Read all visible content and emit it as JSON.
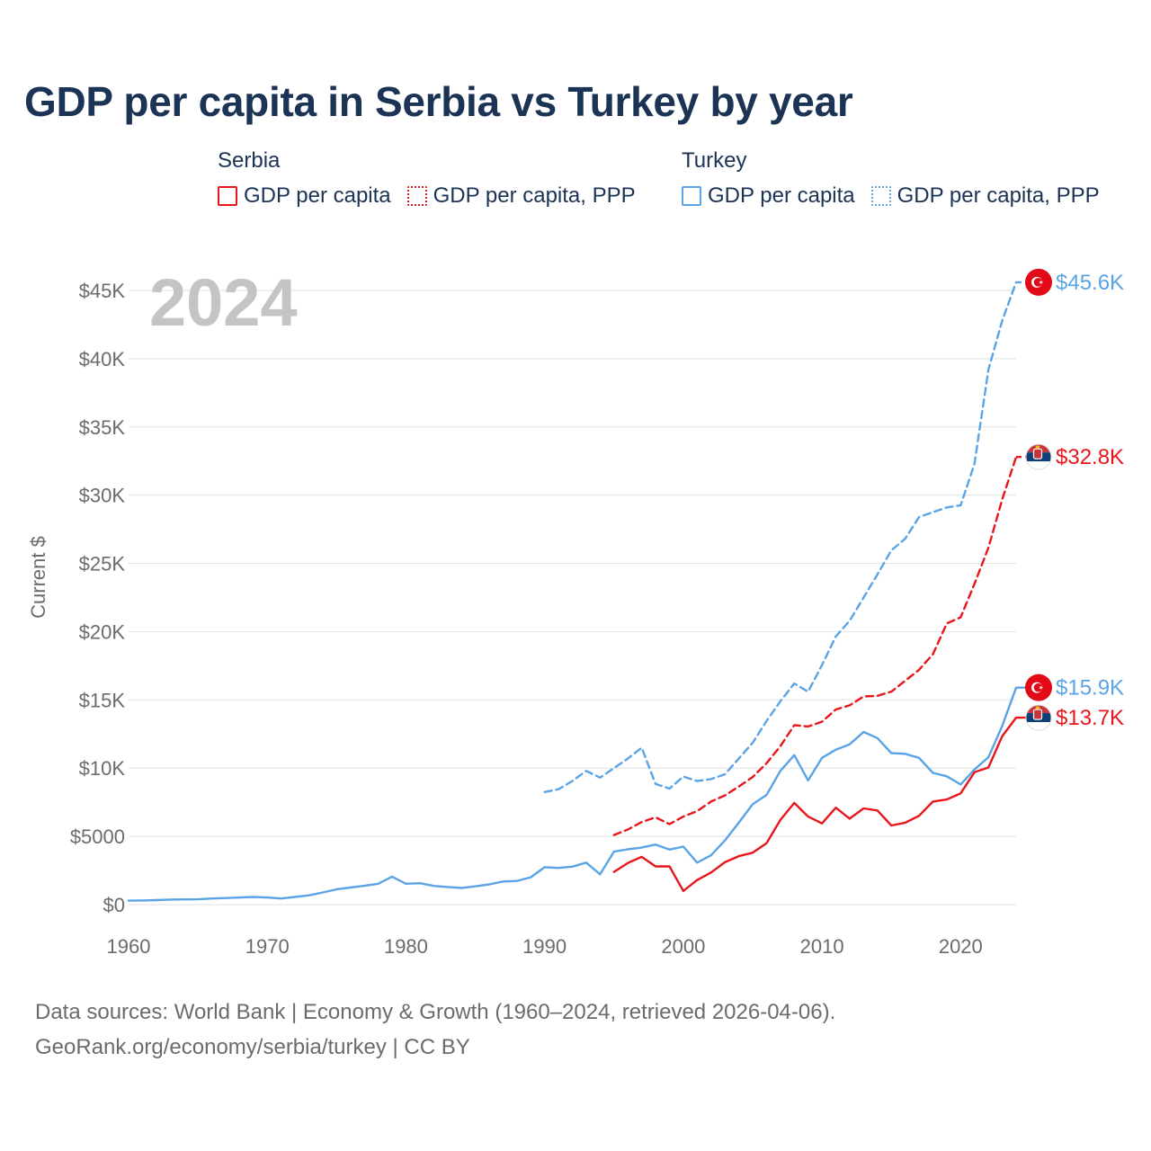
{
  "colors": {
    "serbia": "#e8161b",
    "turkey": "#5aa4e6",
    "title": "#1b3354",
    "muted": "#6b6b6b",
    "year": "#c4c4c4",
    "grid": "#e6e6e6"
  },
  "title": "GDP per capita in Serbia vs Turkey by year",
  "legend": {
    "serbia": {
      "heading": "Serbia",
      "items": [
        {
          "label": "GDP per capita",
          "style": "solid"
        },
        {
          "label": "GDP per capita, PPP",
          "style": "dotted"
        }
      ]
    },
    "turkey": {
      "heading": "Turkey",
      "items": [
        {
          "label": "GDP per capita",
          "style": "solid"
        },
        {
          "label": "GDP per capita, PPP",
          "style": "dotted"
        }
      ]
    }
  },
  "footer": {
    "line1": "Data sources: World Bank | Economy & Growth (1960–2024, retrieved 2026-04-06).",
    "line2": "GeoRank.org/economy/serbia/turkey | CC BY"
  },
  "chart_data": {
    "type": "line",
    "year_label": "2024",
    "ylabel": "Current $",
    "xlim": [
      1960,
      2024
    ],
    "ylim": [
      0,
      45000
    ],
    "xticks": [
      1960,
      1970,
      1980,
      1990,
      2000,
      2010,
      2020
    ],
    "xtick_labels": [
      "1960",
      "1970",
      "1980",
      "1990",
      "2000",
      "2010",
      "2020"
    ],
    "yticks": [
      0,
      5000,
      10000,
      15000,
      20000,
      25000,
      30000,
      35000,
      40000,
      45000
    ],
    "ytick_labels": [
      "$0",
      "$5000",
      "$10K",
      "$15K",
      "$20K",
      "$25K",
      "$30K",
      "$35K",
      "$40K",
      "$45K"
    ],
    "grid": true,
    "series": [
      {
        "key": "turkey_ppp",
        "country": "Turkey",
        "name": "GDP per capita, PPP",
        "color": "#5aa4e6",
        "dash": "dashed",
        "end_label": "$45.6K",
        "flag": "turkey-flag-icon",
        "points": [
          [
            1990,
            8250
          ],
          [
            1991,
            8450
          ],
          [
            1992,
            9050
          ],
          [
            1993,
            9800
          ],
          [
            1994,
            9300
          ],
          [
            1995,
            10000
          ],
          [
            1996,
            10700
          ],
          [
            1997,
            11500
          ],
          [
            1998,
            8850
          ],
          [
            1999,
            8500
          ],
          [
            2000,
            9380
          ],
          [
            2001,
            9050
          ],
          [
            2002,
            9200
          ],
          [
            2003,
            9550
          ],
          [
            2004,
            10700
          ],
          [
            2005,
            11850
          ],
          [
            2006,
            13450
          ],
          [
            2007,
            14900
          ],
          [
            2008,
            16200
          ],
          [
            2009,
            15600
          ],
          [
            2010,
            17550
          ],
          [
            2011,
            19650
          ],
          [
            2012,
            20800
          ],
          [
            2013,
            22500
          ],
          [
            2014,
            24200
          ],
          [
            2015,
            25950
          ],
          [
            2016,
            26800
          ],
          [
            2017,
            28400
          ],
          [
            2018,
            28750
          ],
          [
            2019,
            29100
          ],
          [
            2020,
            29250
          ],
          [
            2021,
            32300
          ],
          [
            2022,
            39200
          ],
          [
            2023,
            42800
          ],
          [
            2024,
            45600
          ]
        ]
      },
      {
        "key": "serbia_ppp",
        "country": "Serbia",
        "name": "GDP per capita, PPP",
        "color": "#e8161b",
        "dash": "dashed",
        "end_label": "$32.8K",
        "flag": "serbia-flag-icon",
        "points": [
          [
            1995,
            5100
          ],
          [
            1996,
            5500
          ],
          [
            1997,
            6050
          ],
          [
            1998,
            6400
          ],
          [
            1999,
            5900
          ],
          [
            2000,
            6450
          ],
          [
            2001,
            6850
          ],
          [
            2002,
            7550
          ],
          [
            2003,
            8000
          ],
          [
            2004,
            8650
          ],
          [
            2005,
            9350
          ],
          [
            2006,
            10350
          ],
          [
            2007,
            11600
          ],
          [
            2008,
            13150
          ],
          [
            2009,
            13050
          ],
          [
            2010,
            13400
          ],
          [
            2011,
            14300
          ],
          [
            2012,
            14600
          ],
          [
            2013,
            15250
          ],
          [
            2014,
            15300
          ],
          [
            2015,
            15600
          ],
          [
            2016,
            16400
          ],
          [
            2017,
            17200
          ],
          [
            2018,
            18350
          ],
          [
            2019,
            20600
          ],
          [
            2020,
            21050
          ],
          [
            2021,
            23500
          ],
          [
            2022,
            26150
          ],
          [
            2023,
            29700
          ],
          [
            2024,
            32800
          ]
        ]
      },
      {
        "key": "turkey_gdp",
        "country": "Turkey",
        "name": "GDP per capita",
        "color": "#5aa4e6",
        "dash": "solid",
        "end_label": "$15.9K",
        "flag": "turkey-flag-icon",
        "points": [
          [
            1960,
            290
          ],
          [
            1961,
            300
          ],
          [
            1962,
            330
          ],
          [
            1963,
            370
          ],
          [
            1964,
            380
          ],
          [
            1965,
            390
          ],
          [
            1966,
            450
          ],
          [
            1967,
            480
          ],
          [
            1968,
            520
          ],
          [
            1969,
            560
          ],
          [
            1970,
            520
          ],
          [
            1971,
            450
          ],
          [
            1972,
            560
          ],
          [
            1973,
            680
          ],
          [
            1974,
            890
          ],
          [
            1975,
            1120
          ],
          [
            1976,
            1250
          ],
          [
            1977,
            1380
          ],
          [
            1978,
            1530
          ],
          [
            1979,
            2050
          ],
          [
            1980,
            1530
          ],
          [
            1981,
            1570
          ],
          [
            1982,
            1370
          ],
          [
            1983,
            1290
          ],
          [
            1984,
            1220
          ],
          [
            1985,
            1340
          ],
          [
            1986,
            1480
          ],
          [
            1987,
            1690
          ],
          [
            1988,
            1730
          ],
          [
            1989,
            2000
          ],
          [
            1990,
            2740
          ],
          [
            1991,
            2690
          ],
          [
            1992,
            2780
          ],
          [
            1993,
            3080
          ],
          [
            1994,
            2220
          ],
          [
            1995,
            3880
          ],
          [
            1996,
            4050
          ],
          [
            1997,
            4180
          ],
          [
            1998,
            4400
          ],
          [
            1999,
            4030
          ],
          [
            2000,
            4250
          ],
          [
            2001,
            3080
          ],
          [
            2002,
            3610
          ],
          [
            2003,
            4700
          ],
          [
            2004,
            6000
          ],
          [
            2005,
            7350
          ],
          [
            2006,
            8030
          ],
          [
            2007,
            9800
          ],
          [
            2008,
            10950
          ],
          [
            2009,
            9100
          ],
          [
            2010,
            10750
          ],
          [
            2011,
            11350
          ],
          [
            2012,
            11750
          ],
          [
            2013,
            12650
          ],
          [
            2014,
            12200
          ],
          [
            2015,
            11100
          ],
          [
            2016,
            11050
          ],
          [
            2017,
            10750
          ],
          [
            2018,
            9650
          ],
          [
            2019,
            9400
          ],
          [
            2020,
            8800
          ],
          [
            2021,
            9900
          ],
          [
            2022,
            10800
          ],
          [
            2023,
            13100
          ],
          [
            2024,
            15900
          ]
        ]
      },
      {
        "key": "serbia_gdp",
        "country": "Serbia",
        "name": "GDP per capita",
        "color": "#e8161b",
        "dash": "solid",
        "end_label": "$13.7K",
        "flag": "serbia-flag-icon",
        "points": [
          [
            1995,
            2400
          ],
          [
            1996,
            3050
          ],
          [
            1997,
            3500
          ],
          [
            1998,
            2800
          ],
          [
            1999,
            2800
          ],
          [
            2000,
            1000
          ],
          [
            2001,
            1800
          ],
          [
            2002,
            2350
          ],
          [
            2003,
            3100
          ],
          [
            2004,
            3550
          ],
          [
            2005,
            3800
          ],
          [
            2006,
            4500
          ],
          [
            2007,
            6200
          ],
          [
            2008,
            7450
          ],
          [
            2009,
            6450
          ],
          [
            2010,
            5950
          ],
          [
            2011,
            7100
          ],
          [
            2012,
            6300
          ],
          [
            2013,
            7050
          ],
          [
            2014,
            6900
          ],
          [
            2015,
            5800
          ],
          [
            2016,
            6000
          ],
          [
            2017,
            6500
          ],
          [
            2018,
            7550
          ],
          [
            2019,
            7700
          ],
          [
            2020,
            8150
          ],
          [
            2021,
            9700
          ],
          [
            2022,
            10050
          ],
          [
            2023,
            12350
          ],
          [
            2024,
            13700
          ]
        ]
      }
    ]
  }
}
